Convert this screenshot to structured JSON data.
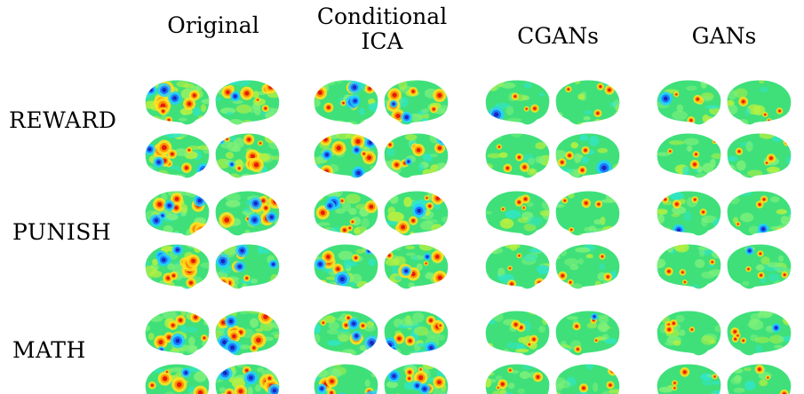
{
  "columns": [
    {
      "id": "original",
      "label": "Original"
    },
    {
      "id": "conditional-ica",
      "label": "Conditional\nICA"
    },
    {
      "id": "cgans",
      "label": "CGANs"
    },
    {
      "id": "gans",
      "label": "GANs"
    }
  ],
  "rows": [
    {
      "id": "reward",
      "label": "REWARD"
    },
    {
      "id": "punish",
      "label": "PUNISH"
    },
    {
      "id": "math",
      "label": "MATH"
    }
  ],
  "colors": {
    "background_brain": "#3fe07a",
    "hot": [
      "#ffe020",
      "#ff8a00",
      "#e01010"
    ],
    "cold": [
      "#22d0ff",
      "#1a6cff",
      "#1a1ab0"
    ]
  }
}
